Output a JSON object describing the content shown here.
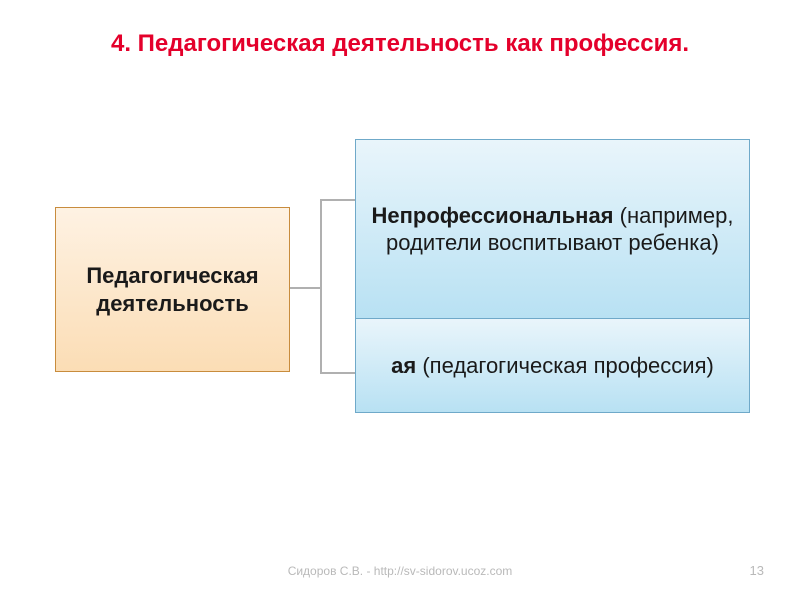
{
  "title": {
    "text": "4. Педагогическая деятельность как профессия.",
    "color": "#e4002b",
    "fontsize": 24
  },
  "diagram": {
    "type": "tree",
    "root": {
      "label": "Педагогическая деятельность",
      "bg_gradient": [
        "#fef2e3",
        "#fbddb5"
      ],
      "border_color": "#c88c3d"
    },
    "children": [
      {
        "label_bold": "Непрофессиональная",
        "label_rest": " (например, родители воспитывают ребенка)",
        "bg_gradient": [
          "#e9f5fb",
          "#b8e1f3"
        ],
        "border_color": "#6fa9c9"
      },
      {
        "label_bold": "ая",
        "label_rest": " (педагогическая профессия)",
        "bg_gradient": [
          "#e9f5fb",
          "#b8e1f3"
        ],
        "border_color": "#6fa9c9"
      }
    ],
    "connector_color": "#b0b0b0"
  },
  "footer": {
    "text": "Сидоров С.В. - http://sv-sidorov.ucoz.com",
    "color": "#b9b9b9",
    "fontsize": 12
  },
  "page_number": "13"
}
